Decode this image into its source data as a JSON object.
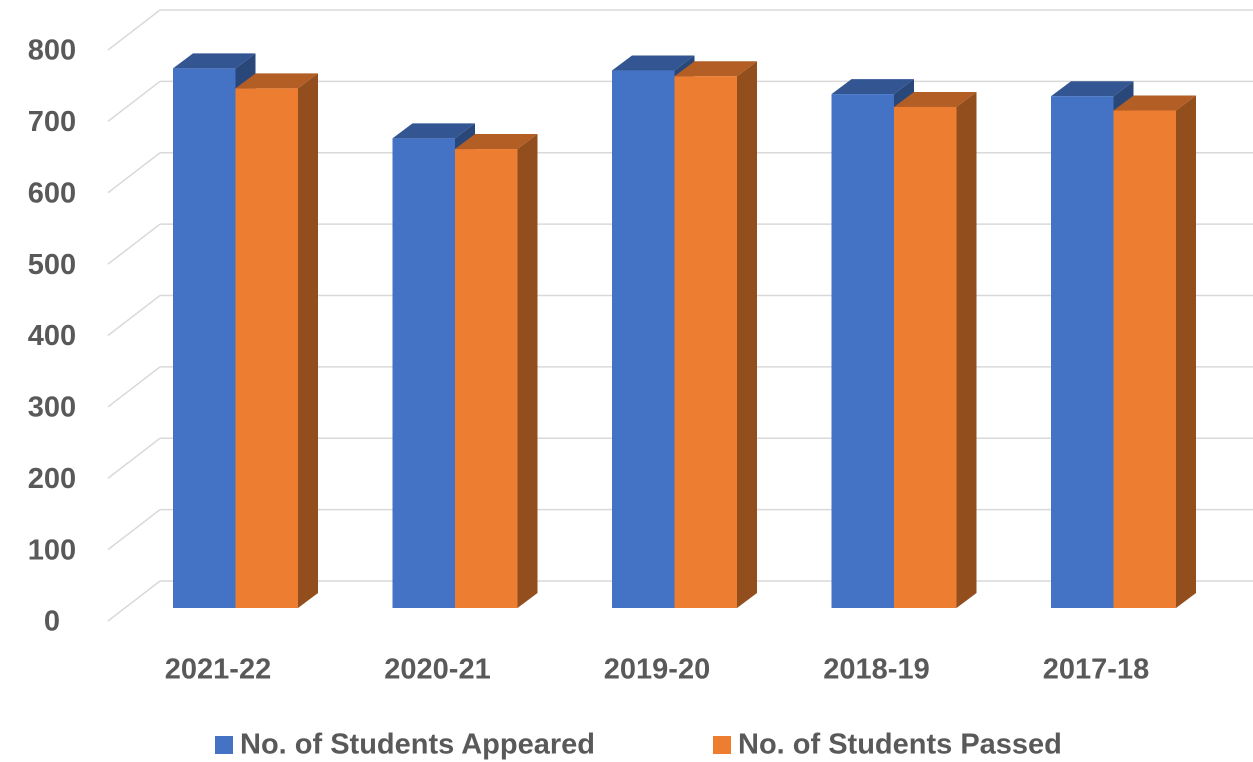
{
  "chart_data": {
    "type": "bar3d",
    "categories": [
      "2021-22",
      "2020-21",
      "2019-20",
      "2018-19",
      "2017-18"
    ],
    "series": [
      {
        "name": "No. of Students Appeared",
        "color": "#4472c4",
        "values": [
          756,
          658,
          753,
          720,
          717
        ]
      },
      {
        "name": "No. of Students Passed",
        "color": "#ed7d31",
        "values": [
          728,
          643,
          745,
          702,
          697
        ]
      }
    ],
    "ylim": [
      0,
      800
    ],
    "yticks": [
      0,
      100,
      200,
      300,
      400,
      500,
      600,
      700,
      800
    ],
    "grid": true,
    "legend": "bottom"
  }
}
